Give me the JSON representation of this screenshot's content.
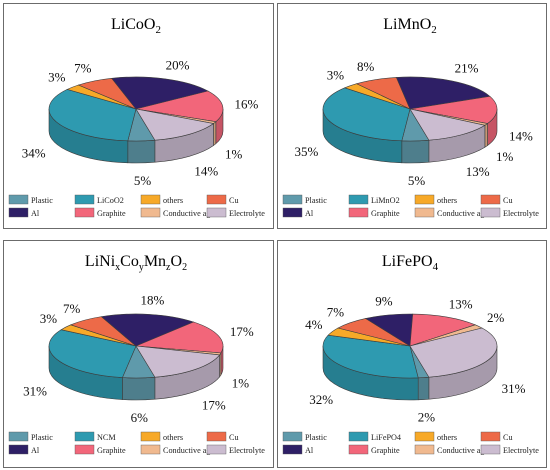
{
  "colors": {
    "Plastic": "#5f9aab",
    "Cathode": "#2e9ab0",
    "others": "#f7a928",
    "Cu": "#ed6a48",
    "Al": "#2e1f66",
    "Graphite": "#f2667a",
    "Conductive agent": "#f0b98f",
    "Electrolyte": "#cbbcd0"
  },
  "chart_data": [
    {
      "type": "pie",
      "title_html": "LiCoO<tspan font-size='11' dy='4'>2</tspan>",
      "legend": [
        "Plastic",
        "LiCoO2",
        "others",
        "Cu",
        "Al",
        "Graphite",
        "Conductive agent",
        "Electrolyte"
      ],
      "slices": [
        {
          "name": "Plastic",
          "value": 5,
          "label": "5%"
        },
        {
          "name": "LiCoO2",
          "value": 34,
          "label": "34%"
        },
        {
          "name": "others",
          "value": 3,
          "label": "3%"
        },
        {
          "name": "Cu",
          "value": 7,
          "label": "7%"
        },
        {
          "name": "Al",
          "value": 20,
          "label": "20%"
        },
        {
          "name": "Graphite",
          "value": 16,
          "label": "16%"
        },
        {
          "name": "Conductive agent",
          "value": 1,
          "label": "1%"
        },
        {
          "name": "Electrolyte",
          "value": 14,
          "label": "14%"
        }
      ]
    },
    {
      "type": "pie",
      "title_html": "LiMnO<tspan font-size='11' dy='4'>2</tspan>",
      "legend": [
        "Plastic",
        "LiMnO2",
        "others",
        "Cu",
        "Al",
        "Graphite",
        "Conductive agent",
        "Electrolyte"
      ],
      "slices": [
        {
          "name": "Plastic",
          "value": 5,
          "label": "5%"
        },
        {
          "name": "LiMnO2",
          "value": 35,
          "label": "35%"
        },
        {
          "name": "others",
          "value": 3,
          "label": "3%"
        },
        {
          "name": "Cu",
          "value": 8,
          "label": "8%"
        },
        {
          "name": "Al",
          "value": 21,
          "label": "21%"
        },
        {
          "name": "Graphite",
          "value": 14,
          "label": "14%"
        },
        {
          "name": "Conductive agent",
          "value": 1,
          "label": "1%"
        },
        {
          "name": "Electrolyte",
          "value": 13,
          "label": "13%"
        }
      ]
    },
    {
      "type": "pie",
      "title_html": "LiNi<tspan font-size='10' dy='4'>x</tspan><tspan dy='-4'>Co</tspan><tspan font-size='10' dy='4'>y</tspan><tspan dy='-4'>Mn</tspan><tspan font-size='10' dy='4'>z</tspan><tspan dy='-4'>O</tspan><tspan font-size='10' dy='4'>2</tspan>",
      "legend": [
        "Plastic",
        "NCM",
        "others",
        "Cu",
        "Al",
        "Graphite",
        "Conductive agent",
        "Electrolyte"
      ],
      "slices": [
        {
          "name": "Plastic",
          "value": 6,
          "label": "6%"
        },
        {
          "name": "NCM",
          "value": 31,
          "label": "31%"
        },
        {
          "name": "others",
          "value": 3,
          "label": "3%"
        },
        {
          "name": "Cu",
          "value": 7,
          "label": "7%"
        },
        {
          "name": "Al",
          "value": 18,
          "label": "18%"
        },
        {
          "name": "Graphite",
          "value": 17,
          "label": "17%"
        },
        {
          "name": "Conductive agent",
          "value": 1,
          "label": "1%"
        },
        {
          "name": "Electrolyte",
          "value": 17,
          "label": "17%"
        }
      ]
    },
    {
      "type": "pie",
      "title_html": "LiFePO<tspan font-size='11' dy='4'>4</tspan>",
      "legend": [
        "Plastic",
        "LiFePO4",
        "others",
        "Cu",
        "Al",
        "Graphite",
        "Conductive agent",
        "Electrolyte"
      ],
      "slices": [
        {
          "name": "Plastic",
          "value": 2,
          "label": "2%"
        },
        {
          "name": "LiFePO4",
          "value": 32,
          "label": "32%"
        },
        {
          "name": "others",
          "value": 4,
          "label": "4%"
        },
        {
          "name": "Cu",
          "value": 7,
          "label": "7%"
        },
        {
          "name": "Al",
          "value": 9,
          "label": "9%"
        },
        {
          "name": "Graphite",
          "value": 13,
          "label": "13%"
        },
        {
          "name": "Conductive agent",
          "value": 2,
          "label": "2%"
        },
        {
          "name": "Electrolyte",
          "value": 31,
          "label": "31%"
        }
      ]
    }
  ]
}
